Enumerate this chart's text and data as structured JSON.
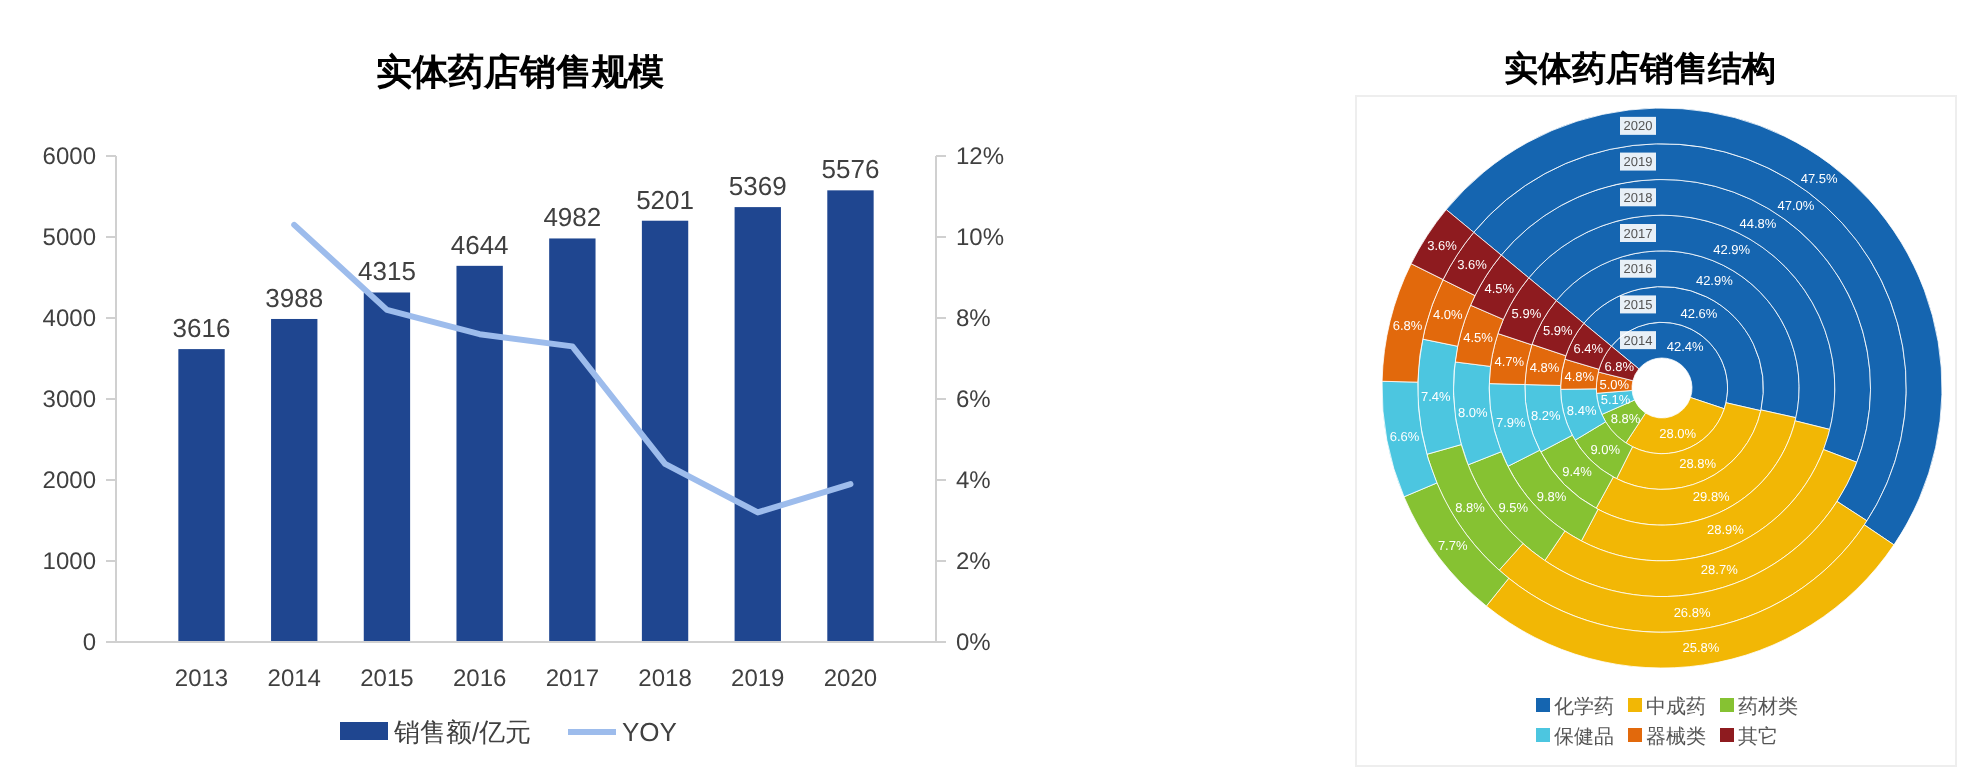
{
  "chart_data": [
    {
      "type": "bar",
      "title": "实体药店销售规模",
      "categories": [
        "2013",
        "2014",
        "2015",
        "2016",
        "2017",
        "2018",
        "2019",
        "2020"
      ],
      "series": [
        {
          "name": "销售额/亿元",
          "type": "bar",
          "color": "#1f4690",
          "values": [
            3616,
            3988,
            4315,
            4644,
            4982,
            5201,
            5369,
            5576
          ],
          "value_labels": [
            "3616",
            "3988",
            "4315",
            "4644",
            "4982",
            "5201",
            "5369",
            "5576"
          ]
        },
        {
          "name": "YOY",
          "type": "line",
          "axis": "y2",
          "color": "#9dbcec",
          "values": [
            null,
            10.3,
            8.2,
            7.6,
            7.3,
            4.4,
            3.2,
            3.9
          ]
        }
      ],
      "ylim": [
        0,
        6000
      ],
      "yticks": [
        0,
        1000,
        2000,
        3000,
        4000,
        5000,
        6000
      ],
      "y2lim": [
        0,
        12
      ],
      "y2ticks": [
        {
          "value": 0,
          "label": "0%"
        },
        {
          "value": 2,
          "label": "2%"
        },
        {
          "value": 4,
          "label": "4%"
        },
        {
          "value": 6,
          "label": "6%"
        },
        {
          "value": 8,
          "label": "8%"
        },
        {
          "value": 10,
          "label": "10%"
        },
        {
          "value": 12,
          "label": "12%"
        }
      ],
      "grid": false,
      "legend": "bottom",
      "marker": "none",
      "line_style": "solid"
    },
    {
      "type": "donut",
      "title": "实体药店销售结构",
      "categories": [
        "化学药",
        "中成药",
        "药材类",
        "保健品",
        "器械类",
        "其它"
      ],
      "colors": [
        "#1565b0",
        "#f2b705",
        "#86c232",
        "#4cc6e0",
        "#e2690c",
        "#8e1b1f"
      ],
      "series": [
        {
          "name": "2014",
          "values": [
            42.4,
            28.0,
            8.8,
            5.1,
            5.0,
            6.8
          ],
          "value_labels": [
            "42.4%",
            "28.0%",
            "8.8%",
            "5.1%",
            "5.0%",
            "6.8%"
          ]
        },
        {
          "name": "2015",
          "values": [
            42.6,
            28.8,
            9.0,
            8.4,
            4.8,
            6.4
          ],
          "value_labels": [
            "42.6%",
            "28.8%",
            "9.0%",
            "8.4%",
            "4.8%",
            "6.4%"
          ]
        },
        {
          "name": "2016",
          "values": [
            42.9,
            29.8,
            9.4,
            8.2,
            4.8,
            5.9
          ],
          "value_labels": [
            "42.9%",
            "29.8%",
            "9.4%",
            "8.2%",
            "4.8%",
            "5.9%"
          ]
        },
        {
          "name": "2017",
          "values": [
            42.9,
            28.9,
            9.8,
            7.9,
            4.7,
            5.9
          ],
          "value_labels": [
            "42.9%",
            "28.9%",
            "9.8%",
            "7.9%",
            "4.7%",
            "5.9%"
          ]
        },
        {
          "name": "2018",
          "values": [
            44.8,
            28.7,
            9.5,
            8.0,
            4.5,
            4.5
          ],
          "value_labels": [
            "44.8%",
            "28.7%",
            "9.5%",
            "8.0%",
            "4.5%",
            "4.5%"
          ]
        },
        {
          "name": "2019",
          "values": [
            47.0,
            26.8,
            8.8,
            7.4,
            4.0,
            3.6
          ],
          "value_labels": [
            "47.0%",
            "26.8%",
            "8.8%",
            "7.4%",
            "4.0%",
            "3.6%"
          ]
        },
        {
          "name": "2020",
          "values": [
            47.5,
            25.8,
            7.7,
            6.6,
            6.8,
            3.6
          ],
          "value_labels": [
            "47.5%",
            "25.8%",
            "7.7%",
            "6.6%",
            "6.8%",
            "3.6%"
          ]
        }
      ],
      "legend": "bottom"
    }
  ]
}
